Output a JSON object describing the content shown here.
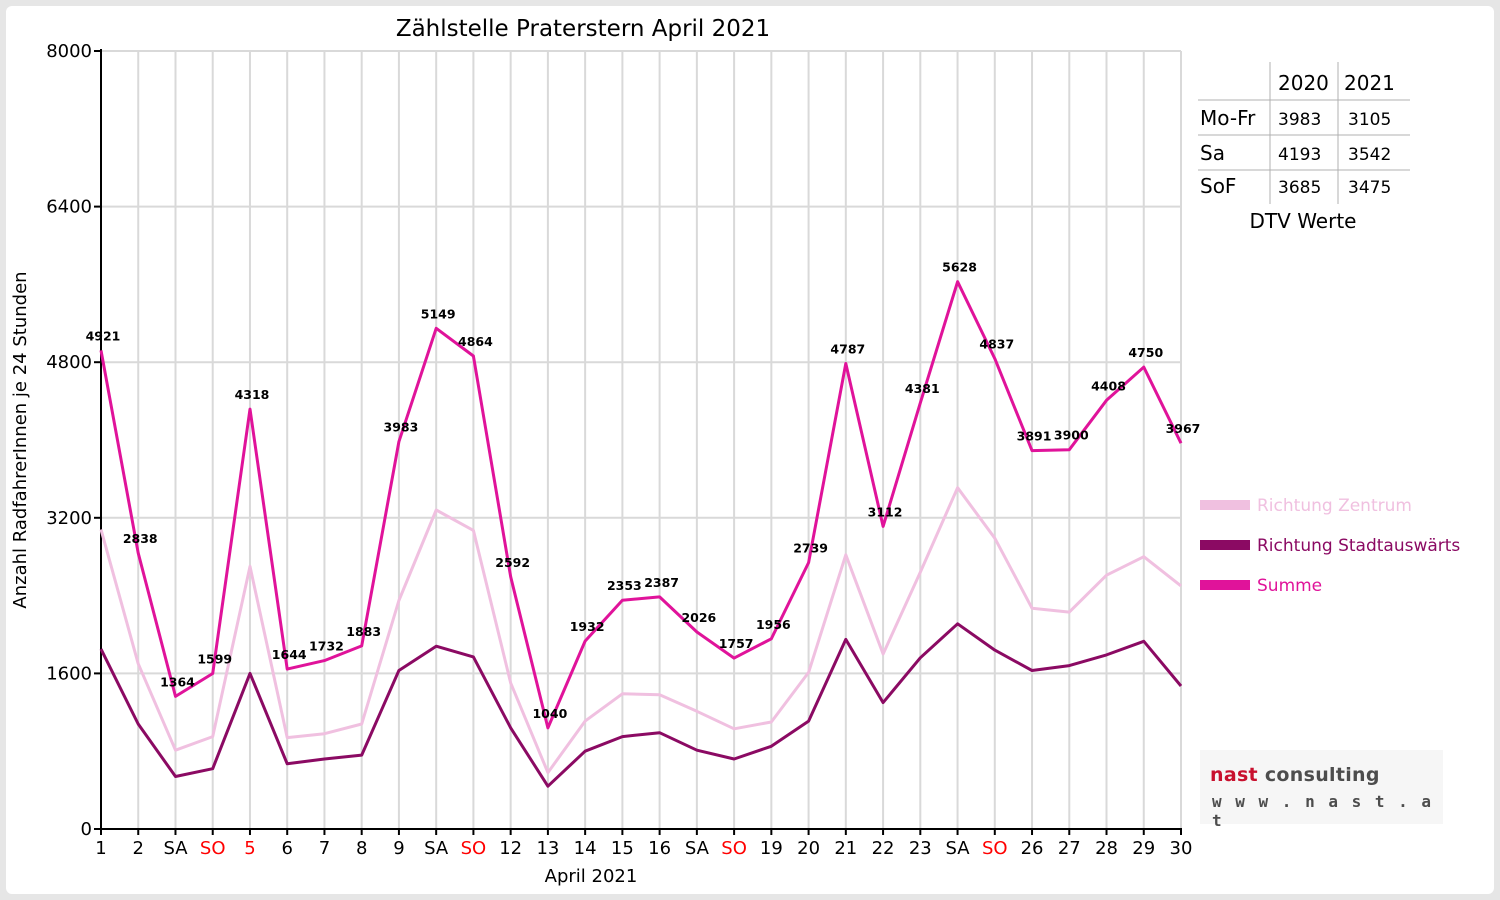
{
  "chart_data": {
    "type": "line",
    "title": "Zählstelle Praterstern April 2021",
    "xlabel": "April 2021",
    "ylabel": "Anzahl RadfahrerInnen je 24 Stunden",
    "ylim": [
      0,
      8000
    ],
    "yticks": [
      0,
      1600,
      3200,
      4800,
      6400,
      8000
    ],
    "grid": true,
    "legend_position": "right",
    "categories": [
      "1",
      "2",
      "SA",
      "SO",
      "5",
      "6",
      "7",
      "8",
      "9",
      "SA",
      "SO",
      "12",
      "13",
      "14",
      "15",
      "16",
      "SA",
      "SO",
      "19",
      "20",
      "21",
      "22",
      "23",
      "SA",
      "SO",
      "26",
      "27",
      "28",
      "29",
      "30"
    ],
    "category_colors": [
      "#000000",
      "#000000",
      "#000000",
      "#ff0000",
      "#ff0000",
      "#000000",
      "#000000",
      "#000000",
      "#000000",
      "#000000",
      "#ff0000",
      "#000000",
      "#000000",
      "#000000",
      "#000000",
      "#000000",
      "#000000",
      "#ff0000",
      "#000000",
      "#000000",
      "#000000",
      "#000000",
      "#000000",
      "#000000",
      "#ff0000",
      "#000000",
      "#000000",
      "#000000",
      "#000000",
      "#000000"
    ],
    "series": [
      {
        "name": "Richtung Zentrum",
        "color": "#f0c0e0",
        "values": [
          3080,
          1700,
          810,
          950,
          2700,
          940,
          980,
          1080,
          2350,
          3280,
          3070,
          1500,
          580,
          1110,
          1390,
          1380,
          1210,
          1030,
          1100,
          1610,
          2820,
          1800,
          2640,
          3510,
          2990,
          2270,
          2230,
          2610,
          2800,
          2500
        ],
        "labels": false
      },
      {
        "name": "Richtung Stadtauswärts",
        "color": "#8b0a63",
        "values": [
          1850,
          1080,
          540,
          620,
          1600,
          670,
          720,
          760,
          1630,
          1880,
          1770,
          1040,
          440,
          800,
          950,
          990,
          810,
          720,
          850,
          1110,
          1950,
          1300,
          1760,
          2110,
          1840,
          1630,
          1680,
          1790,
          1930,
          1470
        ],
        "labels": false
      },
      {
        "name": "Summe",
        "color": "#e0139a",
        "values": [
          4921,
          2838,
          1364,
          1599,
          4318,
          1644,
          1732,
          1883,
          3983,
          5149,
          4864,
          2592,
          1040,
          1932,
          2353,
          2387,
          2026,
          1757,
          1956,
          2739,
          4787,
          3112,
          4381,
          5628,
          4837,
          3891,
          3900,
          4408,
          4750,
          3967
        ],
        "labels": true
      }
    ]
  },
  "dtv_table": {
    "headers": [
      "",
      "2020",
      "2021"
    ],
    "rows": [
      {
        "label": "Mo-Fr",
        "v2020": "3983",
        "v2021": "3105"
      },
      {
        "label": "Sa",
        "v2020": "4193",
        "v2021": "3542"
      },
      {
        "label": "SoF",
        "v2020": "3685",
        "v2021": "3475"
      }
    ],
    "caption": "DTV Werte"
  },
  "logo": {
    "name_part1": "nast",
    "name_part2": " consulting",
    "url": "w w w . n a s t . a t"
  }
}
